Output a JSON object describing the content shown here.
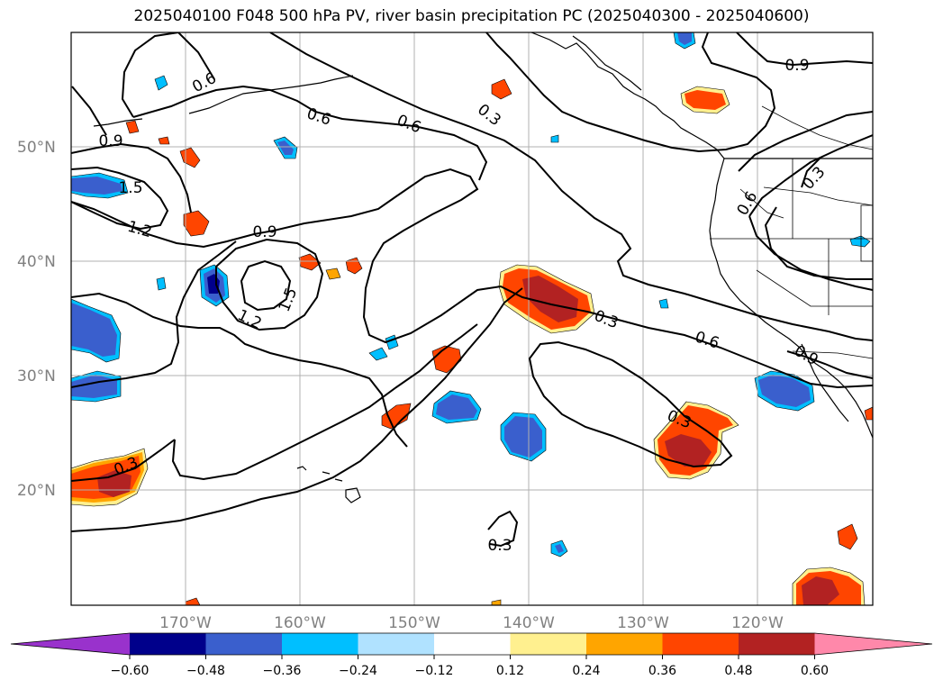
{
  "title": "2025040100 F048 500 hPa PV, river basin precipitation PC (2025040300 - 2025040600)",
  "lat_labels": [
    "50°N",
    "40°N",
    "30°N",
    "20°N"
  ],
  "lon_labels": [
    "170°W",
    "160°W",
    "150°W",
    "140°W",
    "130°W",
    "120°W"
  ],
  "pv_contour_labels": [
    "0.6",
    "0.6",
    "0.6",
    "0.3",
    "0.9",
    "0.9",
    "1.5",
    "1.2",
    "0.9",
    "1.5",
    "1.2",
    "0.3",
    "0.6",
    "0.3",
    "0.3",
    "0.3",
    "0.9",
    "0.6",
    "0.3"
  ],
  "colorbar": {
    "ticks": [
      "−0.60",
      "−0.48",
      "−0.36",
      "−0.24",
      "−0.12",
      "0.12",
      "0.24",
      "0.36",
      "0.48",
      "0.60"
    ],
    "colors": [
      "#9932cc",
      "#00008b",
      "#3a5fcd",
      "#00bfff",
      "#b0e2ff",
      "#ffffff",
      "#fff08f",
      "#ffa500",
      "#ff4500",
      "#b22222",
      "#ff88aa"
    ]
  },
  "colors": {
    "contour": "#000000",
    "coast": "#000000",
    "grid": "#b0b0b0",
    "frame": "#000000"
  }
}
